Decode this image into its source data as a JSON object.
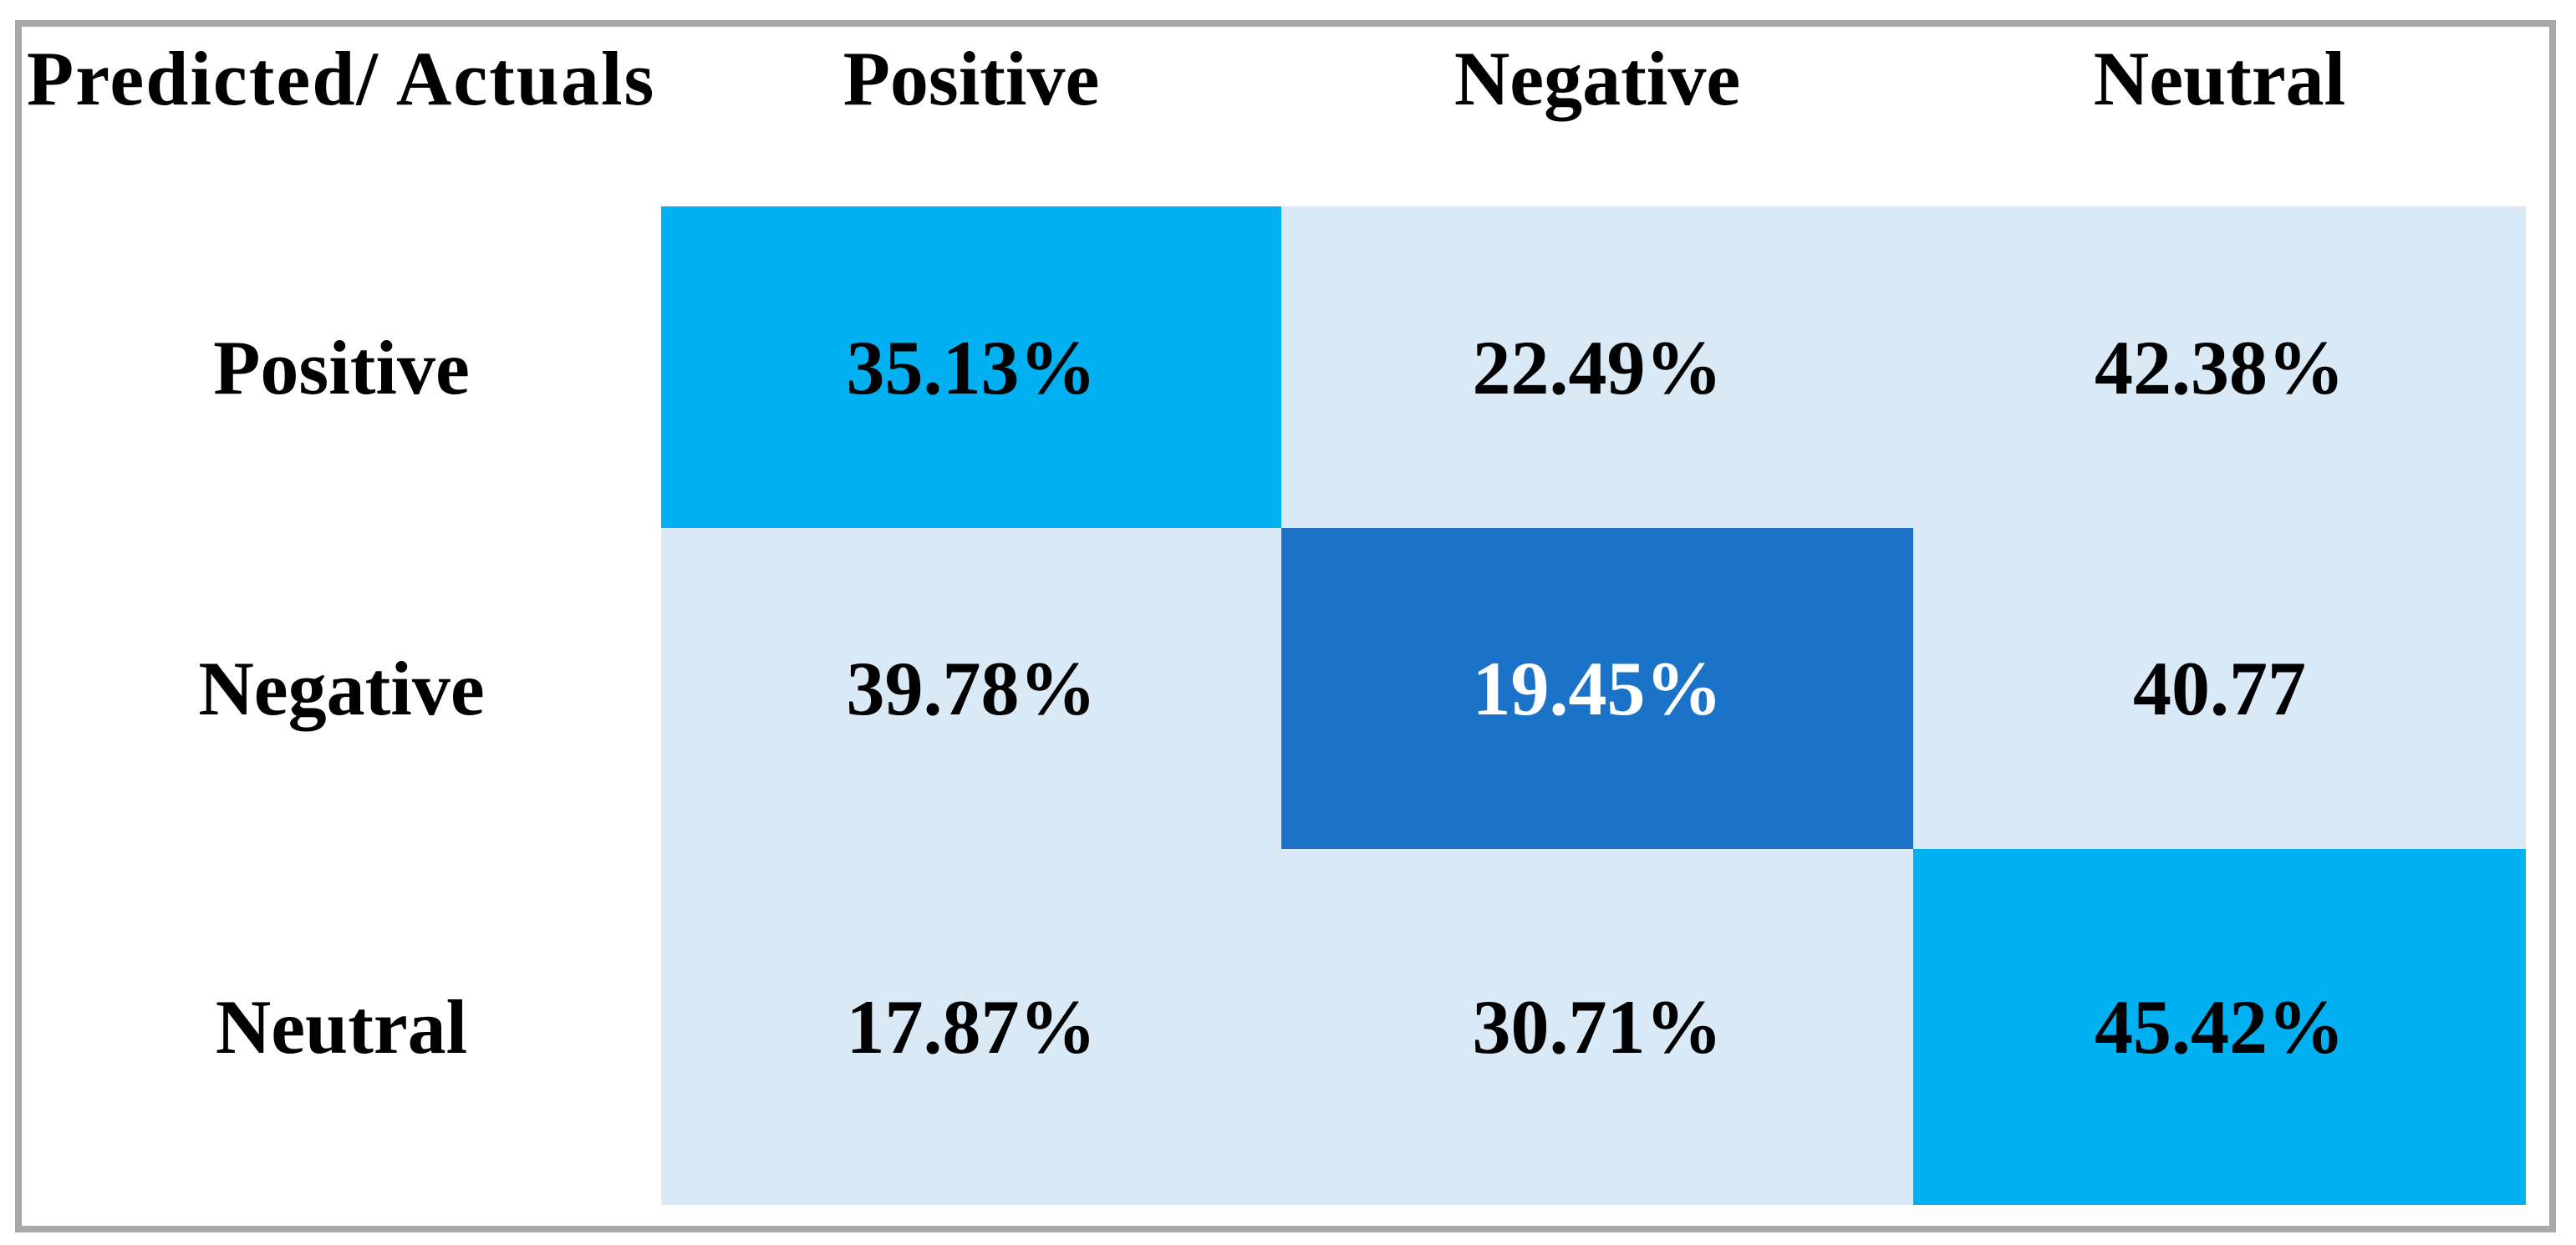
{
  "table": {
    "corner_header": "Predicted/ Actuals",
    "col_headers": [
      "Positive",
      "Negative",
      "Neutral"
    ],
    "rows": [
      {
        "label": "Positive",
        "cells": [
          {
            "text": "35.13%",
            "highlight": "cyan"
          },
          {
            "text": "22.49%",
            "highlight": "none"
          },
          {
            "text": "42.38%",
            "highlight": "none"
          }
        ]
      },
      {
        "label": "Negative",
        "cells": [
          {
            "text": "39.78%",
            "highlight": "none"
          },
          {
            "text": "19.45%",
            "highlight": "dark-blue"
          },
          {
            "text": "40.77",
            "highlight": "none"
          }
        ]
      },
      {
        "label": "Neutral",
        "cells": [
          {
            "text": "17.87%",
            "highlight": "none"
          },
          {
            "text": "30.71%",
            "highlight": "none"
          },
          {
            "text": "45.42%",
            "highlight": "cyan"
          }
        ]
      }
    ],
    "colors": {
      "highlight_cyan": "#00B0F0",
      "highlight_dark_blue": "#1A73C6",
      "cell_light_blue": "#D9E9F6",
      "border_gray": "#A8A8A8",
      "text_black": "#000000",
      "text_white": "#FFFFFF"
    }
  },
  "chart_data": {
    "type": "heatmap",
    "title": "",
    "corner_label": "Predicted/ Actuals",
    "row_categories": [
      "Positive",
      "Negative",
      "Neutral"
    ],
    "col_categories": [
      "Positive",
      "Negative",
      "Neutral"
    ],
    "values": [
      [
        35.13,
        22.49,
        42.38
      ],
      [
        39.78,
        19.45,
        40.77
      ],
      [
        17.87,
        30.71,
        45.42
      ]
    ],
    "cell_labels": [
      [
        "35.13%",
        "22.49%",
        "42.38%"
      ],
      [
        "39.78%",
        "19.45%",
        "40.77"
      ],
      [
        "17.87%",
        "30.71%",
        "45.42%"
      ]
    ],
    "cell_colors": [
      [
        "cyan",
        "light",
        "light"
      ],
      [
        "light",
        "dark",
        "light"
      ],
      [
        "light",
        "light",
        "cyan"
      ]
    ],
    "legend": "none",
    "grid": "off"
  }
}
